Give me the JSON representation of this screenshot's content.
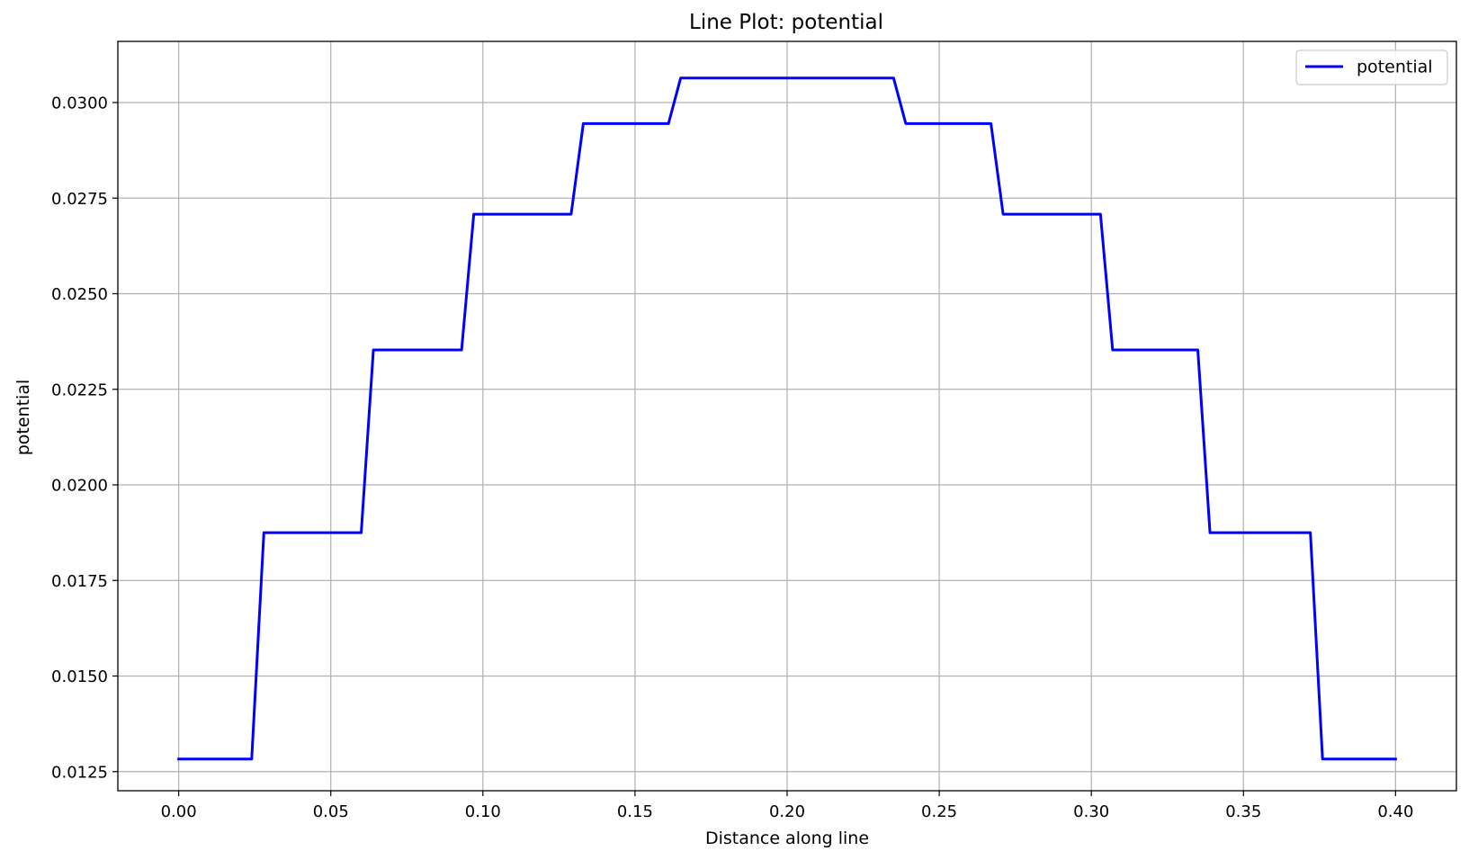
{
  "chart_data": {
    "type": "line",
    "title": "Line Plot: potential",
    "xlabel": "Distance along line",
    "ylabel": "potential",
    "xlim": [
      -0.02,
      0.42
    ],
    "ylim": [
      0.012,
      0.0316
    ],
    "xticks": [
      0.0,
      0.05,
      0.1,
      0.15,
      0.2,
      0.25,
      0.3,
      0.35,
      0.4
    ],
    "xtick_labels": [
      "0.00",
      "0.05",
      "0.10",
      "0.15",
      "0.20",
      "0.25",
      "0.30",
      "0.35",
      "0.40"
    ],
    "yticks": [
      0.0125,
      0.015,
      0.0175,
      0.02,
      0.0225,
      0.025,
      0.0275,
      0.03
    ],
    "ytick_labels": [
      "0.0125",
      "0.0150",
      "0.0175",
      "0.0200",
      "0.0225",
      "0.0250",
      "0.0275",
      "0.0300"
    ],
    "grid": true,
    "legend_position": "top-right",
    "series": [
      {
        "name": "potential",
        "color": "#0000ff",
        "x": [
          0.0,
          0.024,
          0.028,
          0.06,
          0.064,
          0.093,
          0.097,
          0.129,
          0.133,
          0.161,
          0.165,
          0.235,
          0.239,
          0.267,
          0.271,
          0.303,
          0.307,
          0.335,
          0.339,
          0.372,
          0.376,
          0.4
        ],
        "y": [
          0.01283,
          0.01283,
          0.01875,
          0.01875,
          0.02353,
          0.02353,
          0.02708,
          0.02708,
          0.02945,
          0.02945,
          0.03064,
          0.03064,
          0.02945,
          0.02945,
          0.02708,
          0.02708,
          0.02353,
          0.02353,
          0.01875,
          0.01875,
          0.01283,
          0.01283
        ]
      }
    ]
  }
}
